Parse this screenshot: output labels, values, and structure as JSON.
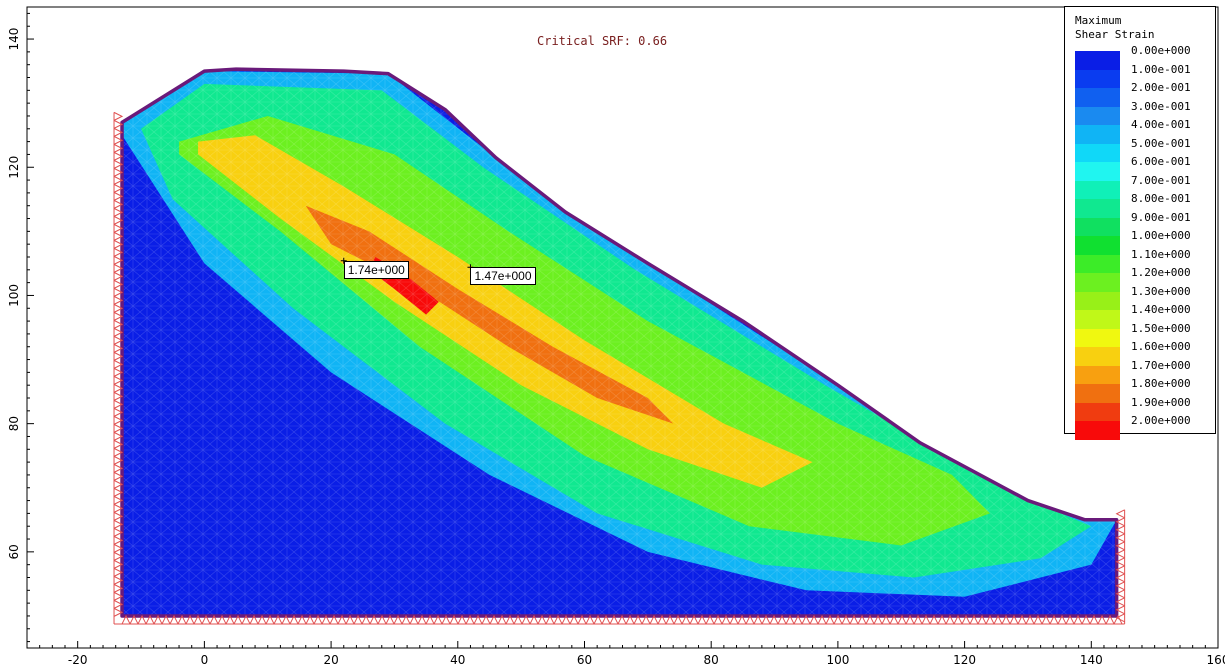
{
  "header": {
    "srf_label": "Critical SRF: 0.66"
  },
  "legend": {
    "title": "Maximum\nShear Strain",
    "items": [
      {
        "label": "0.00e+000",
        "color": "#0a1ee6"
      },
      {
        "label": "1.00e-001",
        "color": "#0a3cf0"
      },
      {
        "label": "2.00e-001",
        "color": "#1060f0"
      },
      {
        "label": "3.00e-001",
        "color": "#1a8af0"
      },
      {
        "label": "4.00e-001",
        "color": "#10b4f5"
      },
      {
        "label": "5.00e-001",
        "color": "#10d8f8"
      },
      {
        "label": "6.00e-001",
        "color": "#20f5f0"
      },
      {
        "label": "7.00e-001",
        "color": "#10f0b8"
      },
      {
        "label": "8.00e-001",
        "color": "#10e890"
      },
      {
        "label": "9.00e-001",
        "color": "#10e060"
      },
      {
        "label": "1.00e+000",
        "color": "#10e030"
      },
      {
        "label": "1.10e+000",
        "color": "#3cec28"
      },
      {
        "label": "1.20e+000",
        "color": "#6cf020"
      },
      {
        "label": "1.30e+000",
        "color": "#98f018"
      },
      {
        "label": "1.40e+000",
        "color": "#c0f818"
      },
      {
        "label": "1.50e+000",
        "color": "#f0f810"
      },
      {
        "label": "1.60e+000",
        "color": "#f8d010"
      },
      {
        "label": "1.70e+000",
        "color": "#f8a010"
      },
      {
        "label": "1.80e+000",
        "color": "#f07010"
      },
      {
        "label": "1.90e+000",
        "color": "#f03c10"
      },
      {
        "label": "2.00e+000",
        "color": "#f80a0a"
      }
    ]
  },
  "callouts": [
    {
      "label": "1.74e+000",
      "x": 22,
      "y": 104
    },
    {
      "label": "1.47e+000",
      "x": 42,
      "y": 103
    }
  ],
  "chart_data": {
    "type": "heatmap",
    "title": "",
    "xlabel": "",
    "ylabel": "",
    "xlim": [
      -28,
      160
    ],
    "ylim": [
      45,
      145
    ],
    "x_ticks": [
      "-20",
      "0",
      "20",
      "40",
      "60",
      "80",
      "100",
      "120",
      "140",
      "160"
    ],
    "y_ticks": [
      "60",
      "80",
      "100",
      "120",
      "140"
    ],
    "x_tick_values": [
      -20,
      0,
      20,
      40,
      60,
      80,
      100,
      120,
      140,
      160
    ],
    "y_tick_values": [
      60,
      80,
      100,
      120,
      140
    ],
    "slope_profile": [
      {
        "x": -13,
        "y": 50
      },
      {
        "x": -13,
        "y": 127
      },
      {
        "x": 0,
        "y": 135
      },
      {
        "x": 5,
        "y": 135.3
      },
      {
        "x": 22,
        "y": 135
      },
      {
        "x": 29,
        "y": 134.6
      },
      {
        "x": 38,
        "y": 129
      },
      {
        "x": 46,
        "y": 121.5
      },
      {
        "x": 57,
        "y": 113
      },
      {
        "x": 70,
        "y": 105
      },
      {
        "x": 85,
        "y": 96
      },
      {
        "x": 100,
        "y": 86
      },
      {
        "x": 113,
        "y": 77
      },
      {
        "x": 130,
        "y": 68
      },
      {
        "x": 139,
        "y": 65
      },
      {
        "x": 144,
        "y": 65
      },
      {
        "x": 144,
        "y": 50
      }
    ],
    "contour_bands": [
      {
        "level": "4.00e-001",
        "points": [
          [
            -13,
            127
          ],
          [
            0,
            135
          ],
          [
            29,
            134.6
          ],
          [
            46,
            121.5
          ],
          [
            70,
            105
          ],
          [
            100,
            86
          ],
          [
            130,
            68
          ],
          [
            144,
            65
          ],
          [
            140,
            58
          ],
          [
            120,
            53
          ],
          [
            95,
            54
          ],
          [
            70,
            60
          ],
          [
            45,
            72
          ],
          [
            20,
            88
          ],
          [
            0,
            105
          ],
          [
            -13,
            125
          ]
        ]
      },
      {
        "level": "8.00e-001",
        "points": [
          [
            -10,
            126
          ],
          [
            0,
            133
          ],
          [
            28,
            132
          ],
          [
            44,
            120
          ],
          [
            68,
            104
          ],
          [
            98,
            86
          ],
          [
            128,
            69
          ],
          [
            140,
            64
          ],
          [
            132,
            59
          ],
          [
            112,
            56
          ],
          [
            88,
            58
          ],
          [
            62,
            66
          ],
          [
            38,
            80
          ],
          [
            14,
            98
          ],
          [
            -5,
            115
          ]
        ]
      },
      {
        "level": "1.20e+000",
        "points": [
          [
            -4,
            124
          ],
          [
            10,
            128
          ],
          [
            30,
            122
          ],
          [
            48,
            110
          ],
          [
            70,
            96
          ],
          [
            100,
            80
          ],
          [
            118,
            72
          ],
          [
            124,
            66
          ],
          [
            110,
            61
          ],
          [
            86,
            64
          ],
          [
            60,
            75
          ],
          [
            34,
            92
          ],
          [
            12,
            110
          ],
          [
            -4,
            122
          ]
        ]
      },
      {
        "level": "1.60e+000",
        "points": [
          [
            -1,
            124
          ],
          [
            8,
            125
          ],
          [
            22,
            117
          ],
          [
            40,
            106
          ],
          [
            60,
            93
          ],
          [
            82,
            80
          ],
          [
            96,
            74
          ],
          [
            88,
            70
          ],
          [
            70,
            76
          ],
          [
            50,
            86
          ],
          [
            30,
            99
          ],
          [
            12,
            112
          ],
          [
            -1,
            122
          ]
        ]
      },
      {
        "level": "1.80e+000",
        "points": [
          [
            16,
            114
          ],
          [
            26,
            110
          ],
          [
            40,
            101
          ],
          [
            55,
            92
          ],
          [
            70,
            84
          ],
          [
            74,
            80
          ],
          [
            62,
            84
          ],
          [
            48,
            92
          ],
          [
            34,
            101
          ],
          [
            20,
            108
          ]
        ]
      },
      {
        "level": "2.00e+000",
        "points": [
          [
            27,
            106
          ],
          [
            32,
            103
          ],
          [
            37,
            99
          ],
          [
            35,
            97
          ],
          [
            30,
            101
          ],
          [
            26,
            104
          ]
        ]
      }
    ]
  }
}
